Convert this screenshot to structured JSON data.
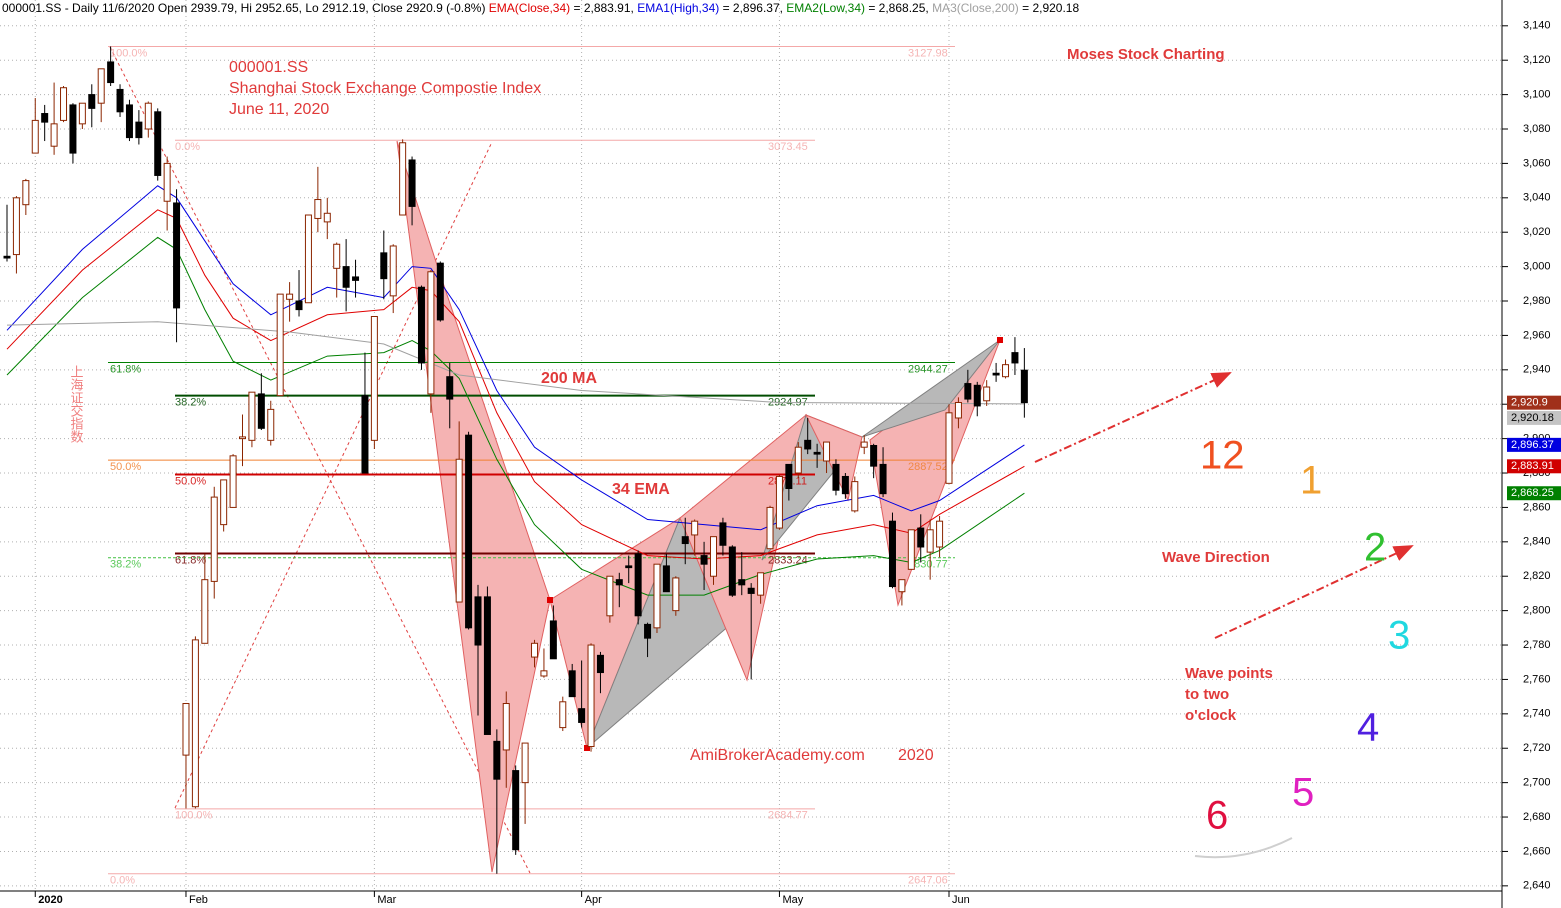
{
  "chart_data": {
    "type": "candlestick",
    "header": "000001.SS - Daily 11/6/2020 Open 2939.79, Hi 2952.65, Lo 2912.19, Close 2920.9 (-0.8%) ",
    "categories": [
      null,
      null,
      null,
      "2020",
      null,
      null,
      null,
      null,
      null,
      null,
      null,
      null,
      null,
      null,
      null,
      null,
      null,
      null,
      null,
      "Feb",
      null,
      null,
      null,
      null,
      null,
      null,
      null,
      null,
      null,
      null,
      null,
      null,
      null,
      null,
      null,
      null,
      null,
      null,
      null,
      "Mar",
      null,
      null,
      null,
      null,
      null,
      null,
      null,
      null,
      null,
      null,
      null,
      null,
      null,
      null,
      null,
      null,
      null,
      null,
      null,
      null,
      null,
      "Apr",
      null,
      null,
      null,
      null,
      null,
      null,
      null,
      null,
      null,
      null,
      null,
      null,
      null,
      null,
      null,
      null,
      null,
      null,
      null,
      null,
      "May",
      null,
      null,
      null,
      null,
      null,
      null,
      null,
      null,
      null,
      null,
      null,
      null,
      null,
      null,
      null,
      null,
      null,
      "Jun",
      null,
      null,
      null,
      null,
      null,
      null,
      null,
      null
    ],
    "open": [
      3006,
      3007,
      3036,
      3066,
      3089,
      3070,
      3085,
      3094,
      3083,
      3100,
      3095,
      3119,
      3103,
      3094,
      3084,
      3080,
      3090,
      3038,
      3037,
      2716,
      2686,
      2781,
      2817,
      2850,
      2860,
      2900,
      2899,
      2926,
      2899,
      2925,
      2981,
      2980,
      2979,
      3028,
      3026,
      2999,
      3000,
      2994,
      2925,
      2899,
      3008,
      2983,
      3030,
      3062,
      2988,
      2926,
      3002,
      2936,
      2805,
      2902,
      2808,
      2808,
      2724,
      2719,
      2707,
      2700,
      2773,
      2762,
      2794,
      2732,
      2765,
      2743,
      2721,
      2774,
      2797,
      2818,
      2826,
      2833,
      2792,
      2790,
      2826,
      2800,
      2843,
      2844,
      2832,
      2820,
      2851,
      2837,
      2818,
      2813,
      2809,
      2836,
      2848,
      2885,
      2880,
      2899,
      2892,
      2887,
      2885,
      2878,
      2858,
      2895,
      2896,
      2885,
      2852,
      2811,
      2824,
      2848,
      2834,
      2837,
      2874,
      2912,
      2932,
      2931,
      2922,
      2938,
      2936,
      2950,
      2939.79
    ],
    "high": [
      3036,
      3041,
      3051,
      3098,
      3094,
      3107,
      3105,
      3095,
      3095,
      3106,
      3115,
      3128,
      3106,
      3097,
      3091,
      3096,
      3092,
      3064,
      3045,
      2746,
      2785,
      2833,
      2872,
      2875,
      2891,
      2914,
      2926,
      2938,
      2922,
      2984,
      2991,
      2998,
      3030,
      3058,
      3040,
      3014,
      3016,
      3004,
      2950,
      2971,
      3021,
      3013,
      3074,
      3064,
      2989,
      2998,
      3003,
      2944,
      2910,
      2904,
      2815,
      2814,
      2731,
      2753,
      2710,
      2723,
      2783,
      2778,
      2803,
      2750,
      2769,
      2771,
      2781,
      2776,
      2820,
      2822,
      2832,
      2835,
      2793,
      2827,
      2833,
      2820,
      2854,
      2853,
      2840,
      2843,
      2854,
      2838,
      2834,
      2816,
      2822,
      2861,
      2879,
      2885,
      2898,
      2912,
      2897,
      2898,
      2888,
      2880,
      2878,
      2902,
      2897,
      2895,
      2857,
      2818,
      2847,
      2856,
      2853,
      2855,
      2920,
      2924,
      2940,
      2933,
      2934,
      2944,
      2946,
      2959,
      2952.65
    ],
    "low": [
      3003,
      2996,
      3030,
      3066,
      3073,
      3065,
      3084,
      3060,
      3080,
      3081,
      3084,
      3105,
      3087,
      3073,
      3071,
      3075,
      3050,
      3021,
      2956,
      2685,
      2685,
      2781,
      2807,
      2846,
      2860,
      2884,
      2895,
      2905,
      2896,
      2925,
      2968,
      2971,
      2979,
      3020,
      3016,
      2982,
      2974,
      2982,
      2880,
      2894,
      2981,
      2973,
      3030,
      3024,
      2940,
      2915,
      2968,
      2906,
      2805,
      2789,
      2739,
      2728,
      2647,
      2697,
      2658,
      2676,
      2767,
      2761,
      2772,
      2730,
      2750,
      2732,
      2718,
      2752,
      2793,
      2802,
      2816,
      2792,
      2773,
      2787,
      2811,
      2797,
      2827,
      2832,
      2812,
      2815,
      2832,
      2808,
      2809,
      2760,
      2804,
      2836,
      2847,
      2864,
      2877,
      2891,
      2883,
      2880,
      2867,
      2865,
      2857,
      2891,
      2877,
      2866,
      2813,
      2803,
      2824,
      2828,
      2818,
      2831,
      2874,
      2906,
      2921,
      2913,
      2919,
      2933,
      2935,
      2937,
      2912.19
    ],
    "close": [
      3005,
      3040,
      3050,
      3085,
      3084,
      3083,
      3104,
      3066,
      3095,
      3092,
      3115,
      3107,
      3090,
      3075,
      3075,
      3095,
      3053,
      3060,
      2976,
      2746,
      2783,
      2818,
      2866,
      2876,
      2890,
      2901,
      2927,
      2906,
      2917,
      2984,
      2984,
      2975,
      3030,
      3039,
      3031,
      3013,
      2988,
      2992,
      2880,
      2971,
      2993,
      3012,
      3072,
      3035,
      2944,
      2997,
      2969,
      2923,
      2888,
      2790,
      2780,
      2728,
      2702,
      2746,
      2661,
      2723,
      2781,
      2765,
      2772,
      2747,
      2750,
      2735,
      2780,
      2764,
      2820,
      2815,
      2825,
      2797,
      2784,
      2827,
      2811,
      2819,
      2839,
      2852,
      2827,
      2843,
      2838,
      2809,
      2815,
      2810,
      2822,
      2860,
      2878,
      2871,
      2895,
      2894,
      2891,
      2898,
      2870,
      2868,
      2875,
      2898,
      2884,
      2868,
      2814,
      2818,
      2847,
      2837,
      2847,
      2852,
      2915,
      2921,
      2923,
      2919,
      2930,
      2937,
      2943,
      2944,
      2920.9
    ],
    "up_color": "#8b2500",
    "down_color": "#000000",
    "series": [
      {
        "name": "EMA(Close,34)",
        "legend_value": " = 2,883.91, ",
        "color": "#e00000",
        "x": [
          0,
          8,
          16,
          18,
          21,
          24,
          28,
          34,
          40,
          43,
          45,
          48,
          52,
          56,
          61,
          68,
          74,
          80,
          86,
          92,
          96,
          99,
          108
        ],
        "values": [
          2952,
          2998,
          3033,
          3028,
          2995,
          2970,
          2957,
          2972,
          2975,
          2988,
          2986,
          2968,
          2915,
          2875,
          2850,
          2832,
          2830,
          2832,
          2844,
          2850,
          2845,
          2856,
          2883.91
        ]
      },
      {
        "name": "EMA1(High,34)",
        "legend_value": " = 2,896.37, ",
        "color": "#0000e0",
        "x": [
          0,
          8,
          16,
          18,
          21,
          24,
          28,
          34,
          40,
          43,
          45,
          48,
          52,
          56,
          61,
          68,
          74,
          80,
          86,
          92,
          96,
          99,
          108
        ],
        "values": [
          2963,
          3010,
          3047,
          3040,
          3015,
          2990,
          2972,
          2988,
          2982,
          3000,
          2999,
          2975,
          2928,
          2895,
          2876,
          2853,
          2850,
          2847,
          2861,
          2867,
          2858,
          2864,
          2896.37
        ]
      },
      {
        "name": "EMA2(Low,34)",
        "legend_value": " = 2,868.25, ",
        "color": "#008000",
        "x": [
          0,
          8,
          16,
          18,
          21,
          24,
          28,
          34,
          40,
          43,
          45,
          48,
          52,
          56,
          61,
          68,
          74,
          80,
          86,
          92,
          96,
          99,
          108
        ],
        "values": [
          2937,
          2982,
          3017,
          3010,
          2975,
          2945,
          2934,
          2948,
          2950,
          2957,
          2951,
          2935,
          2888,
          2850,
          2824,
          2809,
          2809,
          2821,
          2830,
          2832,
          2828,
          2835,
          2868.25
        ]
      },
      {
        "name": "MA3(Close,200)",
        "legend_value": " = 2,920.18",
        "color": "#a0a0a0",
        "x": [
          0,
          16,
          30,
          40,
          48,
          61,
          82,
          108
        ],
        "values": [
          2966,
          2968,
          2962,
          2955,
          2937,
          2928,
          2921,
          2920.18
        ]
      }
    ],
    "ylim": [
      2637,
      3155
    ],
    "yticks": [
      {
        "value": 2640,
        "label": "2,640"
      },
      {
        "value": 2660,
        "label": "2,660"
      },
      {
        "value": 2680,
        "label": "2,680"
      },
      {
        "value": 2700,
        "label": "2,700"
      },
      {
        "value": 2720,
        "label": "2,720"
      },
      {
        "value": 2740,
        "label": "2,740"
      },
      {
        "value": 2760,
        "label": "2,760"
      },
      {
        "value": 2780,
        "label": "2,780"
      },
      {
        "value": 2800,
        "label": "2,800"
      },
      {
        "value": 2820,
        "label": "2,820"
      },
      {
        "value": 2840,
        "label": "2,840"
      },
      {
        "value": 2860,
        "label": "2,860"
      },
      {
        "value": 2880,
        "label": "2,880"
      },
      {
        "value": 2900,
        "label": "2,900"
      },
      {
        "value": 2920,
        "label": "2,920"
      },
      {
        "value": 2940,
        "label": "2,940"
      },
      {
        "value": 2960,
        "label": "2,960"
      },
      {
        "value": 2980,
        "label": "2,980"
      },
      {
        "value": 3000,
        "label": "3,000"
      },
      {
        "value": 3020,
        "label": "3,020"
      },
      {
        "value": 3040,
        "label": "3,040"
      },
      {
        "value": 3060,
        "label": "3,060"
      },
      {
        "value": 3080,
        "label": "3,080"
      },
      {
        "value": 3100,
        "label": "3,100"
      },
      {
        "value": 3120,
        "label": "3,120"
      },
      {
        "value": 3140,
        "label": "3,140"
      }
    ],
    "grid": true,
    "fib_levels": [
      {
        "label": "100.0%",
        "value": 3127.98,
        "color": "#f4a8a8"
      },
      {
        "label": "0.0%",
        "value": 3073.45,
        "color": "#f4a8a8"
      },
      {
        "label": "61.8%",
        "value": 2944.27,
        "color": "#008000"
      },
      {
        "label": "38.2%",
        "value": 2924.97,
        "color": "#004d00"
      },
      {
        "label": "50.0%",
        "value": 2887.52,
        "color": "#f08030"
      },
      {
        "label": "50.0%",
        "value": 2879.11,
        "color": "#d00000"
      },
      {
        "label": "61.8%",
        "value": 2833.24,
        "color": "#700000"
      },
      {
        "label": "38.2%",
        "value": 2830.77,
        "color": "#40c040"
      },
      {
        "label": "100.0%",
        "value": 2684.77,
        "color": "#f4a8a8"
      },
      {
        "label": "0.0%",
        "value": 2647.06,
        "color": "#f4a8a8"
      }
    ],
    "price_tags": [
      {
        "value": 2920.9,
        "label": "2,920.9",
        "color": "#a0301a"
      },
      {
        "value": 2920.18,
        "label": "2,920.18",
        "color": "#c4c4c4"
      },
      {
        "value": 2896.37,
        "label": "2,896.37",
        "color": "#0000e0"
      },
      {
        "value": 2883.91,
        "label": "2,883.91",
        "color": "#d00000"
      },
      {
        "value": 2868.25,
        "label": "2,868.25",
        "color": "#008000"
      }
    ],
    "annotations": [
      "000001.SS",
      "Shanghai Stock Exchange Compostie Index",
      "June 11, 2020",
      "Moses Stock Charting",
      "200 MA",
      "34 EMA",
      "AmiBrokerAcademy.com",
      "2020",
      "Wave Direction",
      "Wave points",
      "to two",
      "o'clock",
      "上海证交指数"
    ],
    "clock_labels": [
      "12",
      "1",
      "2",
      "3",
      "4",
      "5",
      "6"
    ]
  }
}
